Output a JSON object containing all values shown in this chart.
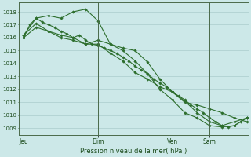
{
  "background_color": "#cce8e8",
  "grid_color": "#aacccc",
  "line_color": "#2d6e2d",
  "marker_color": "#2d6e2d",
  "xlabel_text": "Pression niveau de la mer( hPa )",
  "x_tick_labels": [
    "Jeu",
    "Dim",
    "Ven",
    "Sam"
  ],
  "x_tick_positions": [
    0,
    48,
    96,
    120
  ],
  "ylim": [
    1008.5,
    1018.7
  ],
  "yticks": [
    1009,
    1010,
    1011,
    1012,
    1013,
    1014,
    1015,
    1016,
    1017,
    1018
  ],
  "xlim": [
    -3,
    145
  ],
  "vlines": [
    0,
    48,
    96,
    120
  ],
  "series": [
    {
      "x": [
        0,
        4,
        8,
        12,
        16,
        20,
        24,
        28,
        32,
        36,
        40,
        44,
        48,
        52,
        56,
        60,
        64,
        68,
        72,
        76,
        80,
        84,
        88,
        92,
        96,
        100,
        104,
        108,
        112,
        116,
        120,
        124,
        128,
        132,
        136,
        140,
        144
      ],
      "y": [
        1016.0,
        1017.0,
        1017.5,
        1017.2,
        1017.0,
        1016.8,
        1016.5,
        1016.3,
        1016.0,
        1016.2,
        1015.8,
        1015.5,
        1015.4,
        1015.2,
        1015.0,
        1014.8,
        1014.5,
        1014.2,
        1013.8,
        1013.5,
        1013.2,
        1012.8,
        1012.5,
        1012.2,
        1011.8,
        1011.5,
        1011.2,
        1010.8,
        1010.5,
        1010.2,
        1009.8,
        1009.5,
        1009.2,
        1009.1,
        1009.2,
        1009.5,
        1009.8
      ]
    },
    {
      "x": [
        0,
        8,
        16,
        24,
        32,
        40,
        48,
        56,
        64,
        72,
        80,
        88,
        96,
        104,
        112,
        120,
        128,
        136,
        144
      ],
      "y": [
        1016.2,
        1017.5,
        1017.7,
        1017.5,
        1018.0,
        1018.2,
        1017.3,
        1015.5,
        1015.0,
        1014.2,
        1013.2,
        1012.0,
        1011.2,
        1010.2,
        1009.8,
        1009.2,
        1009.1,
        1009.2,
        1009.8
      ]
    },
    {
      "x": [
        0,
        8,
        16,
        24,
        32,
        40,
        48,
        56,
        64,
        72,
        80,
        88,
        96,
        104,
        112,
        120,
        128,
        136,
        144
      ],
      "y": [
        1016.0,
        1016.8,
        1016.5,
        1016.0,
        1015.8,
        1015.5,
        1015.8,
        1015.5,
        1015.2,
        1015.0,
        1014.1,
        1012.8,
        1011.8,
        1011.1,
        1010.2,
        1009.5,
        1009.2,
        1009.5,
        1009.8
      ]
    },
    {
      "x": [
        0,
        8,
        16,
        24,
        32,
        40,
        48,
        56,
        64,
        72,
        80,
        88,
        96,
        104,
        112,
        120,
        128,
        136,
        144
      ],
      "y": [
        1016.2,
        1017.1,
        1016.5,
        1016.2,
        1016.0,
        1015.5,
        1015.5,
        1014.8,
        1014.2,
        1013.3,
        1012.8,
        1012.2,
        1011.8,
        1011.0,
        1010.8,
        1010.5,
        1010.2,
        1009.8,
        1009.5
      ]
    }
  ]
}
